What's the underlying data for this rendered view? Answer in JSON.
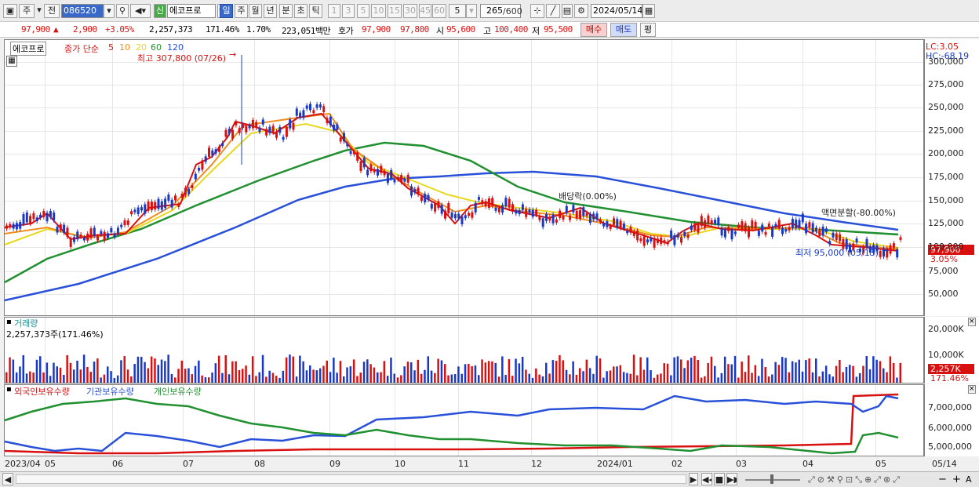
{
  "toolbar": {
    "market": "주",
    "prev": "전",
    "code": "086520",
    "badge": "신",
    "name": "에코프로",
    "periods": [
      "일",
      "주",
      "월",
      "년",
      "분",
      "초",
      "틱"
    ],
    "active_period": "일",
    "intervals": [
      "1",
      "3",
      "5",
      "10",
      "15",
      "30",
      "45",
      "60"
    ],
    "interval_value": "5",
    "count": "265",
    "count_total": "/600",
    "date": "2024/05/14"
  },
  "quote": {
    "price": "97,900",
    "change_arrow": "▲",
    "change": "2,900",
    "change_pct": "+3.05%",
    "volume": "2,257,373",
    "vol_ratio": "171.46%",
    "turnover": "1.70%",
    "amount": "223,051백만",
    "hoga_label": "호가",
    "ask": "97,900",
    "bid": "97,800",
    "open_label": "시",
    "open": "95,600",
    "high_label": "고",
    "high": "100,400",
    "low_label": "저",
    "low": "95,500",
    "buy": "매수",
    "sell": "매도",
    "eval": "평"
  },
  "price_panel": {
    "name_tag": "에코프로",
    "ma_label": "종가 단순",
    "ma_periods": [
      {
        "label": "5",
        "color": "#d81010"
      },
      {
        "label": "10",
        "color": "#f08c1e"
      },
      {
        "label": "20",
        "color": "#e8d81e"
      },
      {
        "label": "60",
        "color": "#209030"
      },
      {
        "label": "120",
        "color": "#2850d8"
      }
    ],
    "high_note": "최고 307,800 (07/26)",
    "low_note": "최저 95,000 (05/13)",
    "dividend_note": "배당락(0.00%)",
    "split_note": "액면분할(-80.00%)",
    "lc": "LC:3.05",
    "hc": "HC:-68.19",
    "last_price": "97,900",
    "last_pct": "3.05%",
    "y_ticks": [
      "300,000",
      "275,000",
      "250,000",
      "225,000",
      "200,000",
      "175,000",
      "150,000",
      "125,000",
      "100,000",
      "75,000",
      "50,000"
    ]
  },
  "volume_panel": {
    "title": "거래량",
    "value": "2,257,373주(171.46%)",
    "y_ticks": [
      "20,000K",
      "10,000K"
    ],
    "last": "2,257K",
    "last_pct": "171.46%"
  },
  "holdings_panel": {
    "labels": [
      {
        "text": "외국인보유수량",
        "color": "#d81010"
      },
      {
        "text": "기관보유수량",
        "color": "#2850d8"
      },
      {
        "text": "개인보유수량",
        "color": "#209030"
      }
    ],
    "y_ticks": [
      "7,000,000",
      "6,000,000",
      "5,000,000"
    ]
  },
  "x_axis": [
    "2023/04",
    "05",
    "06",
    "07",
    "08",
    "09",
    "10",
    "11",
    "12",
    "2024/01",
    "02",
    "03",
    "04",
    "05",
    "05/14"
  ],
  "colors": {
    "up": "#d81010",
    "down": "#1838c8",
    "accent": "#3868c8"
  }
}
